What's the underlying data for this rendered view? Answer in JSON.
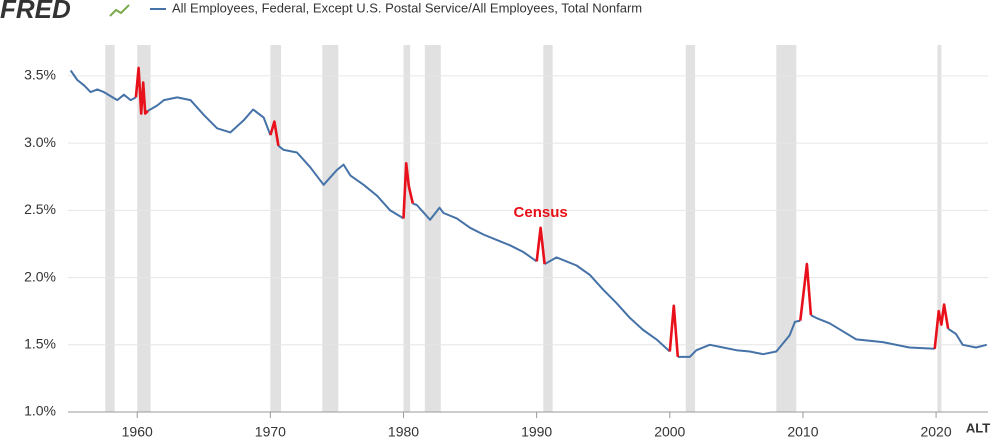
{
  "chart_data": {
    "type": "line",
    "logo": "FRED",
    "alt_button": "ALT",
    "annotation": {
      "text": "Census",
      "x": 1990.3,
      "y": 2.48,
      "color": "#e8101a"
    },
    "recessions": [
      [
        1957.6,
        1958.3
      ],
      [
        1960.0,
        1961.0
      ],
      [
        1970.0,
        1970.8
      ],
      [
        1973.9,
        1975.1
      ],
      [
        1980.0,
        1980.5
      ],
      [
        1981.6,
        1982.8
      ],
      [
        1990.5,
        1991.2
      ],
      [
        2001.2,
        2001.9
      ],
      [
        2008.0,
        2009.5
      ],
      [
        2020.1,
        2020.4
      ]
    ],
    "recession_color": "#e1e1e1",
    "x": [
      1955.0,
      1955.5,
      1956,
      1956.5,
      1957,
      1957.5,
      1958,
      1958.5,
      1959,
      1959.5,
      1959.9,
      1960.1,
      1960.3,
      1960.45,
      1960.6,
      1960.8,
      1961.5,
      1962,
      1963,
      1964,
      1965,
      1966,
      1967,
      1968,
      1968.7,
      1969.5,
      1970.0,
      1970.3,
      1970.6,
      1971,
      1972,
      1973,
      1974,
      1975,
      1975.5,
      1976,
      1977,
      1978,
      1979,
      1980.0,
      1980.2,
      1980.4,
      1980.7,
      1981,
      1982,
      1982.7,
      1983,
      1984,
      1985,
      1986,
      1987,
      1988,
      1989,
      1990.0,
      1990.3,
      1990.6,
      1991.5,
      1993,
      1994,
      1995,
      1996,
      1997,
      1998,
      1999,
      2000.0,
      2000.3,
      2000.6,
      2001.5,
      2002,
      2003,
      2004,
      2005,
      2006,
      2007,
      2008,
      2009,
      2009.4,
      2009.8,
      2010.3,
      2010.6,
      2011,
      2012,
      2013,
      2014,
      2016,
      2018,
      2019.9,
      2020.2,
      2020.4,
      2020.6,
      2020.9,
      2021.5,
      2022,
      2023,
      2023.8
    ],
    "series": [
      {
        "name": "All Employees, Federal, Except U.S. Postal Service/All Employees, Total Nonfarm",
        "color": "#4572a7",
        "values": [
          3.54,
          3.47,
          3.43,
          3.38,
          3.4,
          3.38,
          3.35,
          3.32,
          3.36,
          3.32,
          3.34,
          null,
          null,
          null,
          null,
          3.24,
          3.28,
          3.32,
          3.34,
          3.32,
          3.21,
          3.11,
          3.08,
          3.17,
          3.25,
          3.19,
          3.06,
          null,
          2.98,
          2.95,
          2.93,
          2.82,
          2.69,
          2.8,
          2.84,
          2.76,
          2.69,
          2.61,
          2.5,
          2.44,
          null,
          null,
          2.55,
          2.54,
          2.43,
          2.52,
          2.48,
          2.44,
          2.37,
          2.32,
          2.28,
          2.24,
          2.19,
          2.12,
          null,
          2.1,
          2.15,
          2.09,
          2.02,
          1.91,
          1.81,
          1.7,
          1.61,
          1.54,
          1.45,
          null,
          1.41,
          1.41,
          1.46,
          1.5,
          1.48,
          1.46,
          1.45,
          1.43,
          1.45,
          1.57,
          1.67,
          1.68,
          null,
          1.72,
          1.7,
          1.66,
          1.6,
          1.54,
          1.52,
          1.48,
          1.47,
          null,
          null,
          null,
          1.62,
          1.58,
          1.5,
          1.48,
          1.5
        ]
      },
      {
        "color": "#e8101a",
        "values": [
          null,
          null,
          null,
          null,
          null,
          null,
          null,
          null,
          null,
          null,
          3.34,
          3.56,
          3.22,
          3.45,
          3.22,
          3.24,
          null,
          null,
          null,
          null,
          null,
          null,
          null,
          null,
          null,
          null,
          3.06,
          3.16,
          2.98,
          null,
          null,
          null,
          null,
          null,
          null,
          null,
          null,
          null,
          null,
          2.44,
          2.85,
          2.68,
          2.55,
          null,
          null,
          null,
          null,
          null,
          null,
          null,
          null,
          null,
          null,
          2.12,
          2.37,
          2.1,
          null,
          null,
          null,
          null,
          null,
          null,
          null,
          null,
          1.45,
          1.79,
          1.41,
          null,
          null,
          null,
          null,
          null,
          null,
          null,
          null,
          null,
          null,
          1.68,
          2.1,
          1.72,
          null,
          null,
          null,
          null,
          null,
          null,
          1.47,
          1.75,
          1.65,
          1.8,
          1.62,
          null,
          null,
          null,
          null
        ]
      }
    ],
    "xlim": [
      1954.8,
      2023.9
    ],
    "ylim": [
      1.0,
      3.73
    ],
    "xticks": [
      1960,
      1970,
      1980,
      1990,
      2000,
      2010,
      2020
    ],
    "yticks": [
      {
        "value": 1.0,
        "label": "1.0%"
      },
      {
        "value": 1.5,
        "label": "1.5%"
      },
      {
        "value": 2.0,
        "label": "2.0%"
      },
      {
        "value": 2.5,
        "label": "2.5%"
      },
      {
        "value": 3.0,
        "label": "3.0%"
      },
      {
        "value": 3.5,
        "label": "3.5%"
      }
    ],
    "grid": true
  }
}
